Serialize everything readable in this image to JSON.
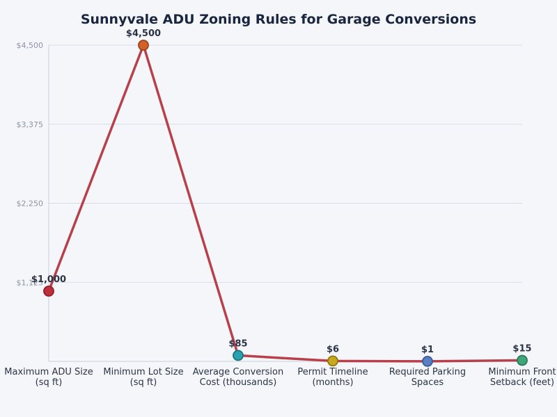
{
  "chart_data": {
    "type": "line",
    "title": "Sunnyvale ADU Zoning Rules for Garage Conversions",
    "xlabel": "",
    "ylabel": "",
    "categories": [
      "Maximum ADU Size (sq ft)",
      "Minimum Lot Size (sq ft)",
      "Average Conversion Cost (thousands)",
      "Permit Timeline (months)",
      "Required Parking Spaces",
      "Minimum Front Setback (feet)"
    ],
    "category_lines": [
      [
        "Maximum ADU Size",
        "(sq ft)"
      ],
      [
        "Minimum Lot Size",
        "(sq ft)"
      ],
      [
        "Average Conversion",
        "Cost (thousands)"
      ],
      [
        "Permit Timeline",
        "(months)"
      ],
      [
        "Required Parking",
        "Spaces"
      ],
      [
        "Minimum Front",
        "Setback (feet)"
      ]
    ],
    "values": [
      1000,
      4500,
      85,
      6,
      1,
      15
    ],
    "data_labels": [
      "$1,000",
      "$4,500",
      "$85",
      "$6",
      "$1",
      "$15"
    ],
    "ylim": [
      0,
      4500
    ],
    "yticks": [
      1125,
      2250,
      3375,
      4500
    ],
    "ytick_labels": [
      "$1,125",
      "$2,250",
      "$3,375",
      "$4,500"
    ],
    "grid": true,
    "line_color": "#b8404a",
    "marker_colors": [
      "#c0303c",
      "#d2622a",
      "#2aa0b0",
      "#c8a81e",
      "#5b7ec2",
      "#3fa57a"
    ],
    "marker_edge_colors": [
      "#8e1f2a",
      "#9a4418",
      "#1a7480",
      "#93780e",
      "#3a5a98",
      "#2a7a58"
    ]
  }
}
